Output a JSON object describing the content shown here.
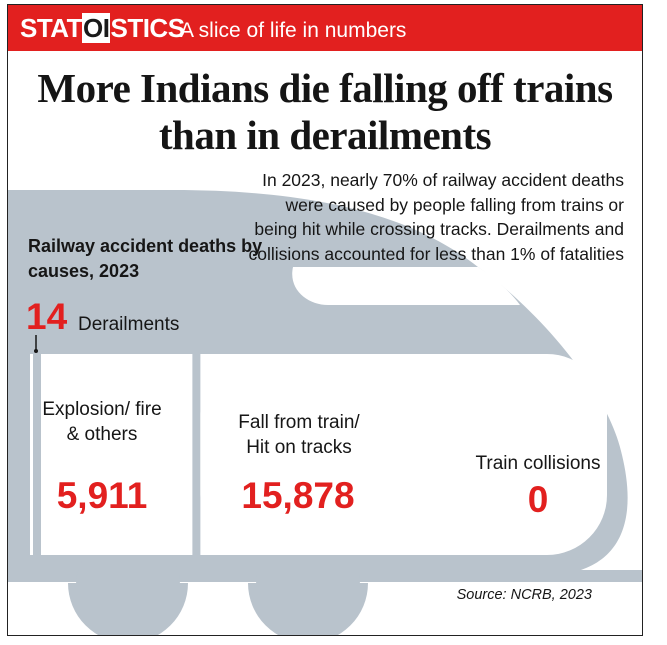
{
  "banner": {
    "brand_prefix": "STAT",
    "brand_mid": "OI",
    "brand_suffix": "STICS",
    "tagline": "A slice of life in numbers"
  },
  "headline": "More Indians die falling off trains than in derailments",
  "intro": "In 2023, nearly 70% of railway accident deaths were caused by people falling from trains or being hit while crossing tracks. Derailments and collisions accounted for less than 1% of fatalities",
  "source": "Source: NCRB, 2023",
  "colors": {
    "accent_red": "#e2201f",
    "train_gray": "#b9c3cc",
    "text": "#161616"
  },
  "chart_data": {
    "type": "bar",
    "title": "Railway accident deaths by causes, 2023",
    "categories": [
      "Derailments",
      "Explosion/ fire & others",
      "Fall from train/ Hit on tracks",
      "Train collisions"
    ],
    "values": [
      14,
      5911,
      15878,
      0
    ],
    "value_labels": [
      "14",
      "5,911",
      "15,878",
      "0"
    ]
  }
}
